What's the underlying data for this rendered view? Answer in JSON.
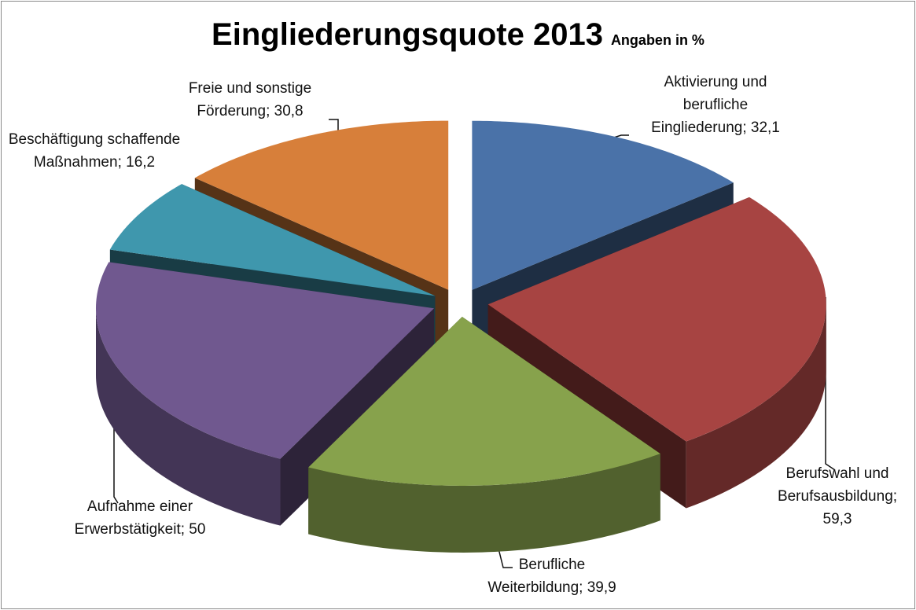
{
  "chart_data": {
    "type": "pie3d",
    "title": "Eingliederungsquote 2013",
    "subtitle": "Angaben in %",
    "label_separator": "; ",
    "categories": [
      "Aktivierung und berufliche Eingliederung",
      "Berufswahl und Berufsausbildung",
      "Berufliche Weiterbildung",
      "Aufnahme einer Erwerbstätigkeit",
      "Beschäftigung schaffende Maßnahmen",
      "Freie und sonstige Förderung"
    ],
    "values": [
      32.1,
      59.3,
      39.9,
      50,
      16.2,
      30.8
    ],
    "value_labels": [
      "32,1",
      "59,3",
      "39,9",
      "50",
      "16,2",
      "30,8"
    ],
    "colors": [
      "#4a72a8",
      "#a74442",
      "#87a24c",
      "#70588f",
      "#3f97ad",
      "#d77f3a"
    ]
  }
}
